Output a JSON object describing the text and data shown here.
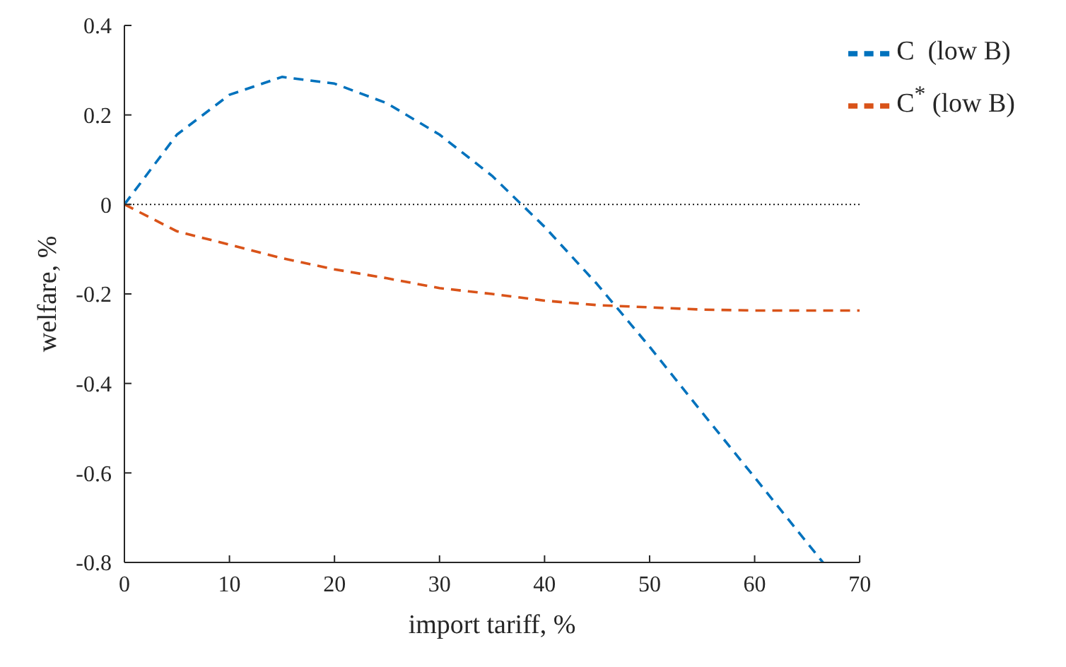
{
  "chart_data": {
    "type": "line",
    "xlabel": "import tariff, %",
    "ylabel": "welfare, %",
    "xlim": [
      0,
      70
    ],
    "xticks": [
      0,
      10,
      20,
      30,
      40,
      50,
      60,
      70
    ],
    "ylim": [
      -0.8,
      0.4
    ],
    "yticks": [
      -0.8,
      -0.6,
      -0.4,
      -0.2,
      0,
      0.2,
      0.4
    ],
    "grid": false,
    "legend": "top right",
    "marker": "none",
    "line_style": "dashed",
    "ref_lines": [
      {
        "axis": "y",
        "value": 0,
        "color": "#000000",
        "line_style": "dotted"
      }
    ],
    "series": [
      {
        "name": "C  (low B)",
        "color": "#0072bd",
        "x": [
          0,
          5,
          10,
          15,
          20,
          25,
          30,
          35,
          40,
          45,
          50,
          55,
          60,
          66.5
        ],
        "values": [
          0,
          0.156,
          0.245,
          0.285,
          0.27,
          0.226,
          0.156,
          0.064,
          -0.05,
          -0.178,
          -0.318,
          -0.465,
          -0.61,
          -0.8
        ]
      },
      {
        "name": "C$^{*}$ (low B)",
        "color": "#d95319",
        "x": [
          0,
          5,
          10,
          15,
          20,
          25,
          30,
          35,
          40,
          45,
          50,
          55,
          60,
          65,
          70
        ],
        "values": [
          0,
          -0.06,
          -0.09,
          -0.12,
          -0.145,
          -0.165,
          -0.187,
          -0.2,
          -0.215,
          -0.225,
          -0.23,
          -0.235,
          -0.237,
          -0.237,
          -0.237
        ]
      }
    ]
  }
}
